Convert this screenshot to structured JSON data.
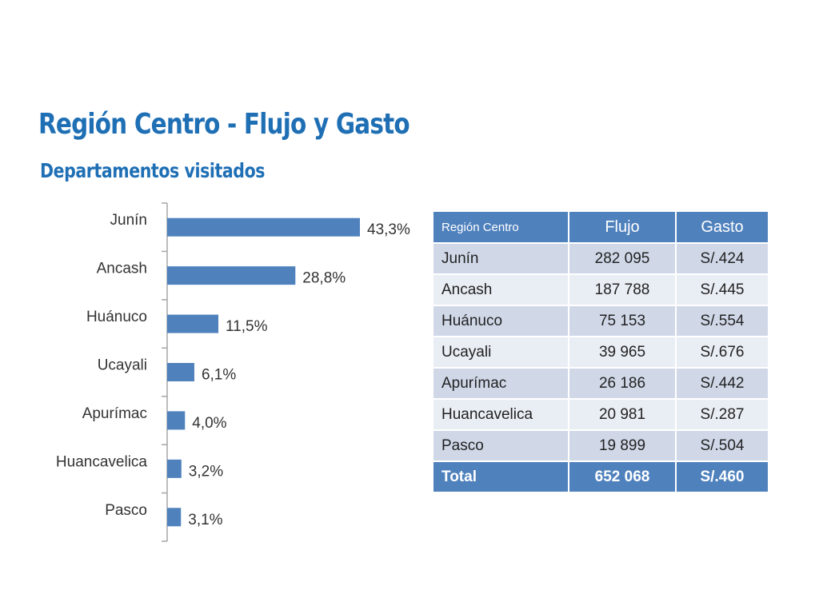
{
  "slide": {
    "title": "Región Centro - Flujo y Gasto",
    "subtitle": "Departamentos visitados"
  },
  "chart_data": {
    "type": "bar",
    "orientation": "horizontal",
    "categories": [
      "Junín",
      "Ancash",
      "Huánuco",
      "Ucayali",
      "Apurímac",
      "Huancavelica",
      "Pasco"
    ],
    "values": [
      43.3,
      28.8,
      11.5,
      6.1,
      4.0,
      3.2,
      3.1
    ],
    "value_labels": [
      "43,3%",
      "28,8%",
      "11,5%",
      "6,1%",
      "4,0%",
      "3,2%",
      "3,1%"
    ],
    "unit": "%",
    "xlim": [
      0,
      50
    ],
    "grid": false,
    "bar_color": "#4f81bd"
  },
  "table": {
    "headers": [
      "Región Centro",
      "Flujo",
      "Gasto"
    ],
    "rows": [
      [
        "Junín",
        "282 095",
        "S/.424"
      ],
      [
        "Ancash",
        "187 788",
        "S/.445"
      ],
      [
        "Huánuco",
        "75 153",
        "S/.554"
      ],
      [
        "Ucayali",
        "39 965",
        "S/.676"
      ],
      [
        "Apurímac",
        "26 186",
        "S/.442"
      ],
      [
        "Huancavelica",
        "20 981",
        "S/.287"
      ],
      [
        "Pasco",
        "19 899",
        "S/.504"
      ]
    ],
    "total": [
      "Total",
      "652 068",
      "S/.460"
    ],
    "colors": {
      "header": "#4f81bd",
      "row_dark": "#d0d8e8",
      "row_light": "#e9edf4"
    }
  }
}
